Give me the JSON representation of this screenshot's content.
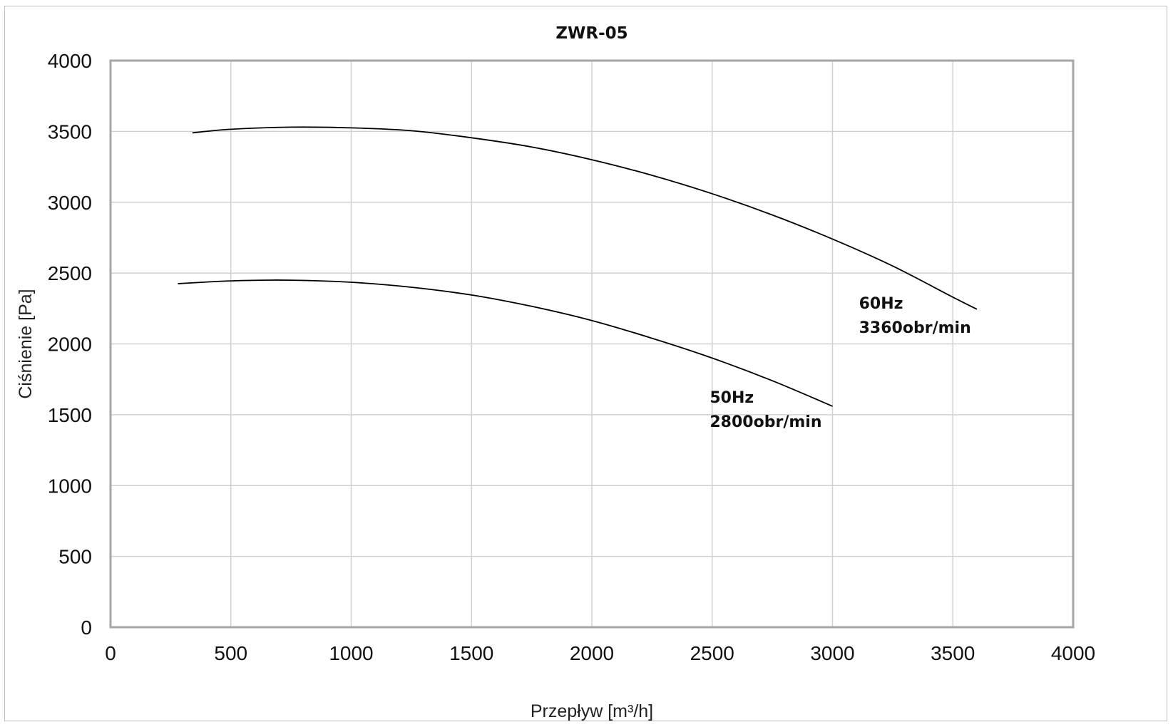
{
  "chart_data": {
    "type": "line",
    "title": "ZWR-05",
    "xlabel": "Przepływ [m³/h]",
    "ylabel": "Ciśnienie [Pa]",
    "xlim": [
      0,
      4000
    ],
    "ylim": [
      0,
      4000
    ],
    "x_ticks": [
      "0",
      "500",
      "1000",
      "1500",
      "2000",
      "2500",
      "3000",
      "3500",
      "4000"
    ],
    "y_ticks": [
      "0",
      "500",
      "1000",
      "1500",
      "2000",
      "2500",
      "3000",
      "3500",
      "4000"
    ],
    "grid": true,
    "legend": "none",
    "series": [
      {
        "x": [
          340,
          500,
          750,
          1000,
          1250,
          1500,
          1750,
          2000,
          2250,
          2500,
          2750,
          3000,
          3250,
          3500,
          3600
        ],
        "y": [
          3490,
          3515,
          3530,
          3525,
          3505,
          3455,
          3390,
          3300,
          3190,
          3060,
          2910,
          2740,
          2550,
          2330,
          2245
        ],
        "color": "#000000"
      },
      {
        "x": [
          280,
          500,
          750,
          1000,
          1250,
          1500,
          1750,
          2000,
          2250,
          2500,
          2750,
          3000
        ],
        "y": [
          2425,
          2445,
          2450,
          2435,
          2400,
          2345,
          2265,
          2165,
          2040,
          1900,
          1740,
          1560
        ],
        "color": "#000000"
      }
    ],
    "annotations": [
      {
        "x": 3110,
        "y": 2250,
        "lines": [
          "60Hz",
          "3360obr/min"
        ]
      },
      {
        "x": 2490,
        "y": 1585,
        "lines": [
          "50Hz",
          "2800obr/min"
        ]
      }
    ]
  }
}
